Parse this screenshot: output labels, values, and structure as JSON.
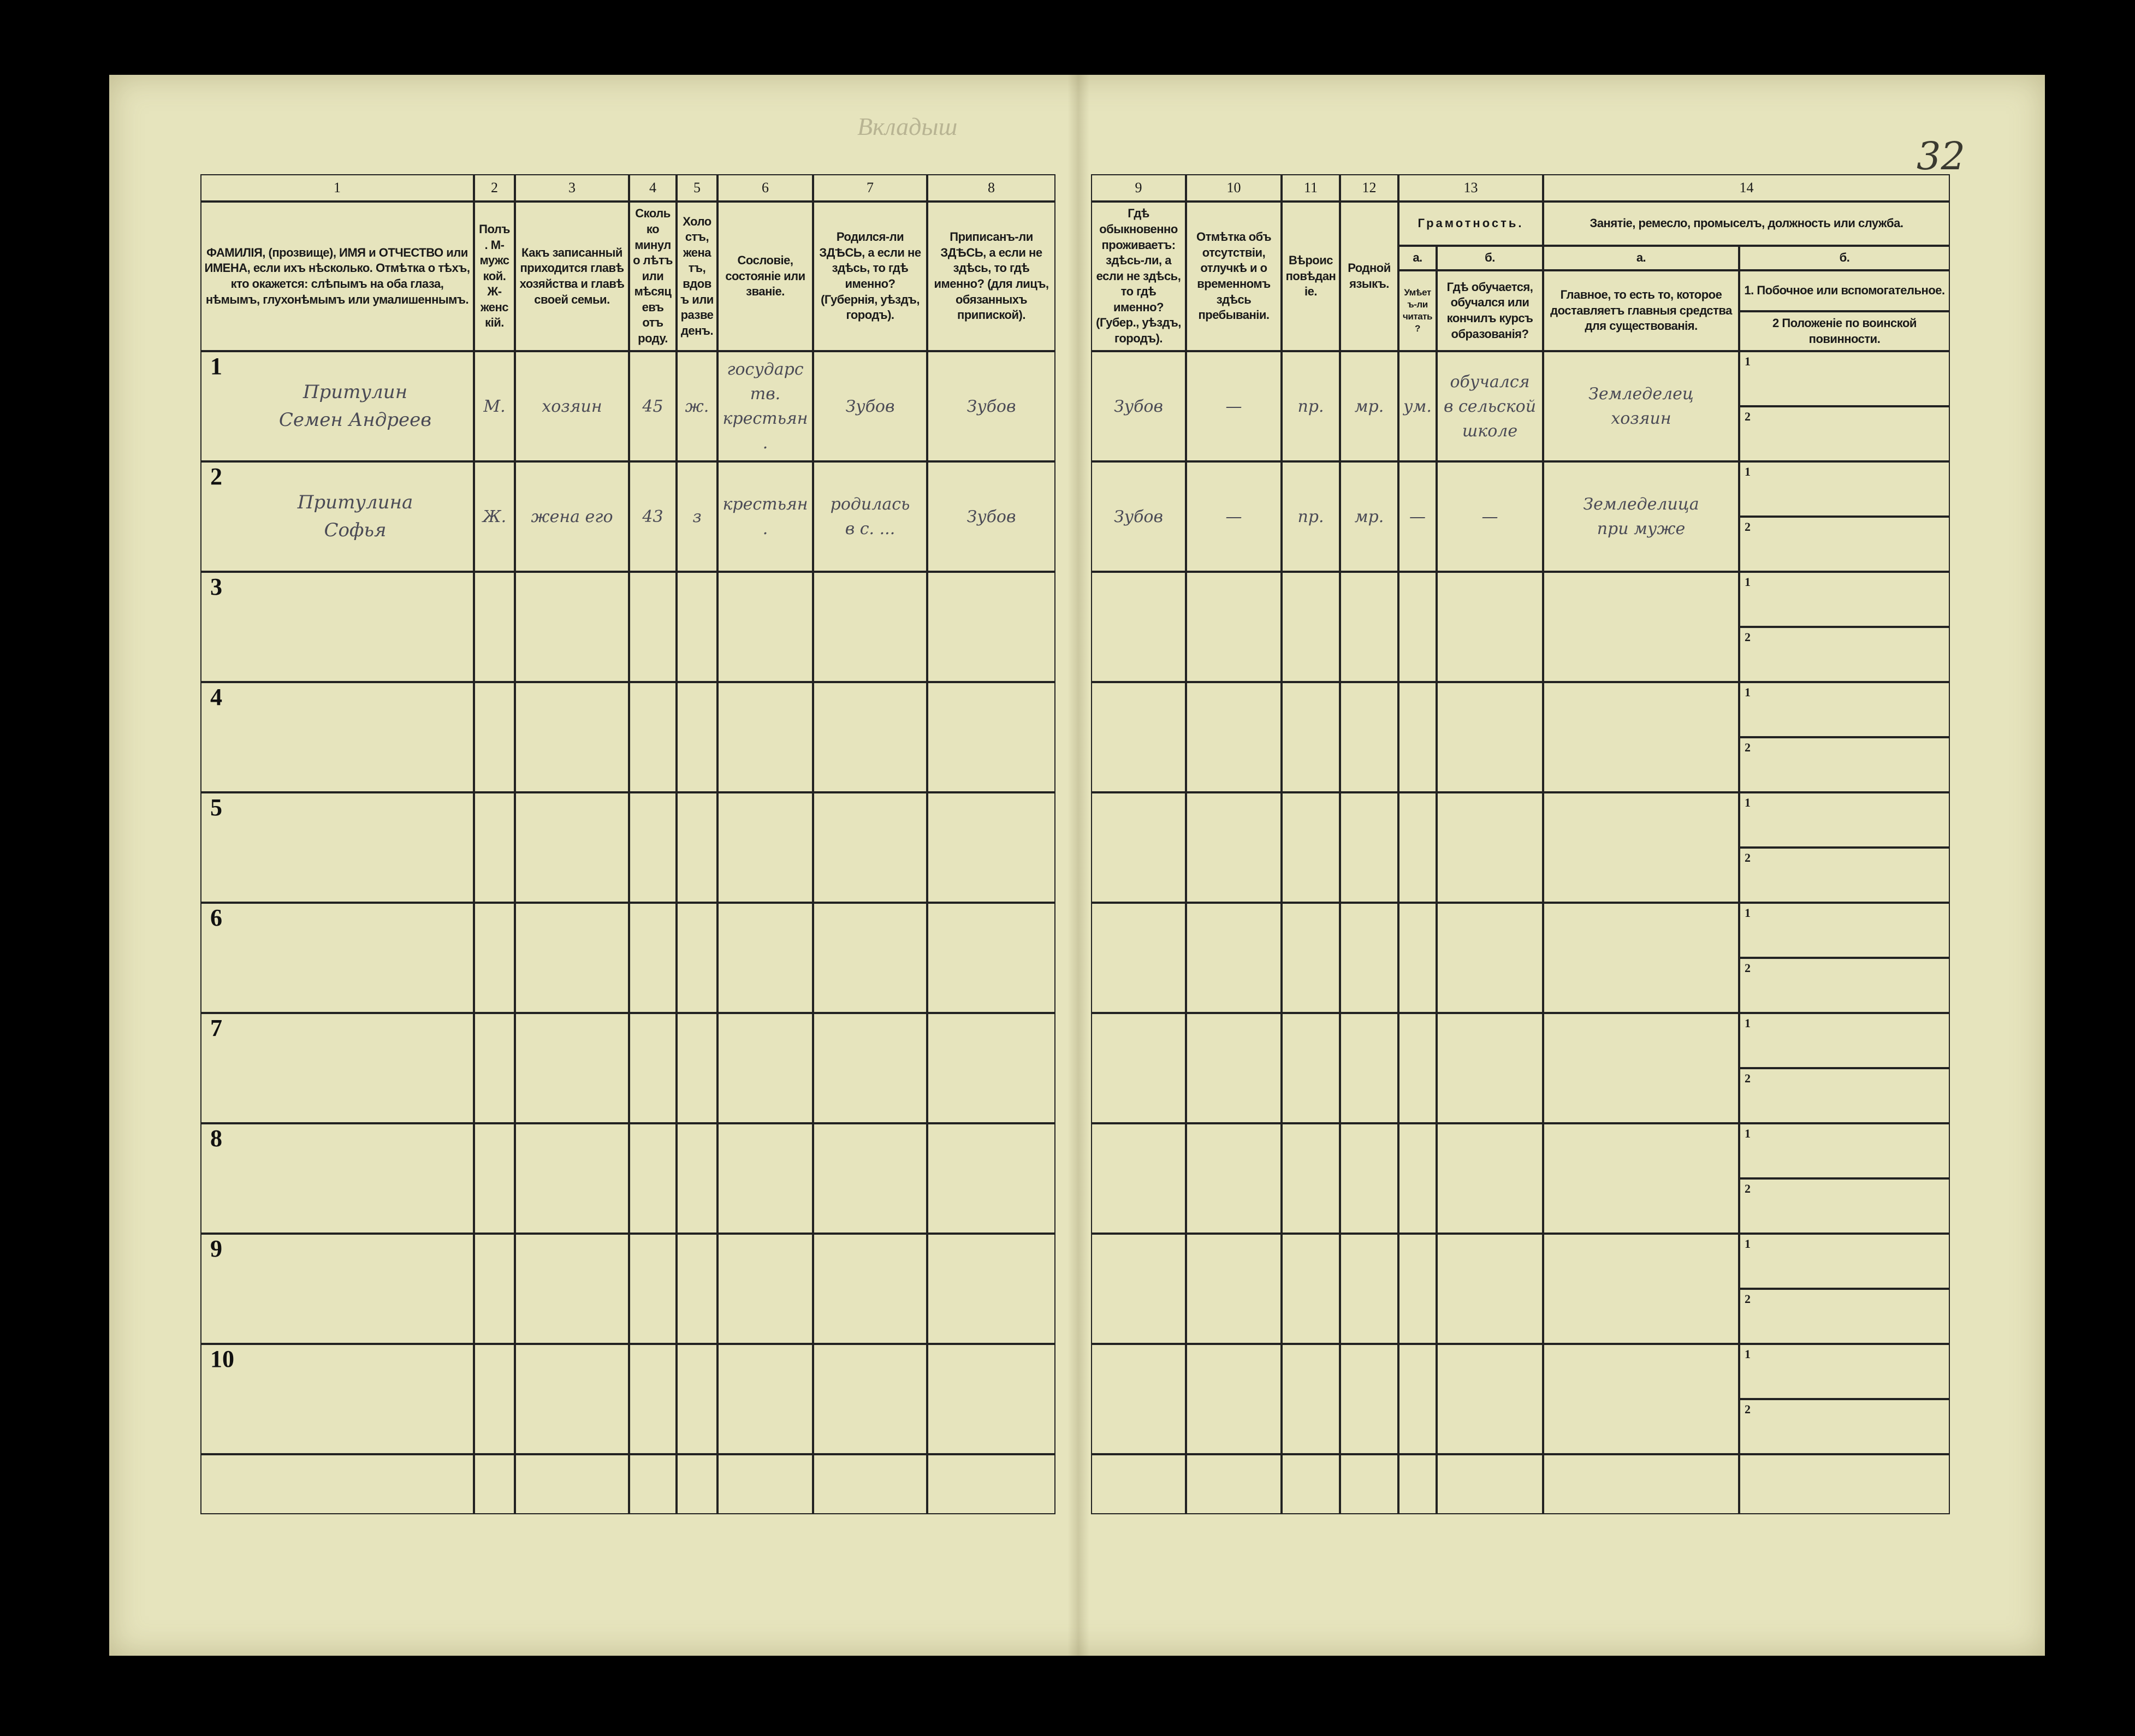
{
  "document": {
    "page_number": "32",
    "faint_heading": "Вкладыш"
  },
  "header": {
    "columns": [
      {
        "num": "1",
        "text": "ФАМИЛІЯ, (прозвище), ИМЯ и ОТЧЕСТВО или ИМЕНА, если ихъ нѣсколько. Отмѣтка о тѣхъ, кто окажется: слѣпымъ на оба глаза, нѣмымъ, глухонѣмымъ или умалишеннымъ."
      },
      {
        "num": "2",
        "text": "Полъ. М-мужской. Ж-женскій."
      },
      {
        "num": "3",
        "text": "Какъ записанный приходится главѣ хозяйства и главѣ своей семьи."
      },
      {
        "num": "4",
        "text": "Сколько минуло лѣтъ или мѣсяцевъ отъ роду."
      },
      {
        "num": "5",
        "text": "Холостъ, женатъ, вдовъ или разведенъ."
      },
      {
        "num": "6",
        "text": "Сословіе, состояніе или званіе."
      },
      {
        "num": "7",
        "text": "Родился-ли ЗДѢСЬ, а если не здѣсь, то гдѣ именно? (Губернія, уѣздъ, городъ)."
      },
      {
        "num": "8",
        "text": "Приписанъ-ли ЗДѢСЬ, а если не здѣсь, то гдѣ именно? (для лицъ, обязанныхъ припиской)."
      },
      {
        "num": "9",
        "text": "Гдѣ обыкновенно проживаетъ: здѣсь-ли, а если не здѣсь, то гдѣ именно? (Губер., уѣздъ, городъ)."
      },
      {
        "num": "10",
        "text": "Отмѣтка объ отсутствіи, отлучкѣ и о временномъ здѣсь пребываніи."
      },
      {
        "num": "11",
        "text": "Вѣроисповѣданіе."
      },
      {
        "num": "12",
        "text": "Родной языкъ."
      }
    ],
    "literacy": {
      "num": "13",
      "title": "Грамотность.",
      "a_label": "а.",
      "a_text": "Умѣетъ-ли читать?",
      "b_label": "б.",
      "b_text": "Гдѣ обучается, обучался или кончилъ курсъ образованія?"
    },
    "occupation": {
      "num": "14",
      "title": "Занятіе, ремесло, промыселъ, должность или служба.",
      "a_label": "а.",
      "a_text": "Главное, то есть то, которое доставляетъ главныя средства для существованія.",
      "b_label": "б.",
      "b_text_1": "1. Побочное или вспомогательное.",
      "b_text_2": "2 Положеніе по воинской повинности."
    }
  },
  "sub_row_labels": [
    "1",
    "2"
  ],
  "rows": [
    {
      "number": "1",
      "cells": [
        "Притулин\nСемен Андреев",
        "М.",
        "хозяин",
        "45",
        "ж.",
        "государств.\nкрестьян.",
        "Зубов",
        "Зубов",
        "Зубов",
        "—",
        "пр.",
        "мр.",
        "ум.",
        "обучался\nв сельской\nшколе",
        "Земледелец\nхозяин",
        ""
      ]
    },
    {
      "number": "2",
      "cells": [
        "Притулина\nСофья",
        "Ж.",
        "жена его",
        "43",
        "з",
        "крестьян.",
        "родилась\nв с. ...",
        "Зубов",
        "Зубов",
        "—",
        "пр.",
        "мр.",
        "—",
        "—",
        "Земледелица\nпри муже",
        ""
      ]
    },
    {
      "number": "3",
      "cells": []
    },
    {
      "number": "4",
      "cells": []
    },
    {
      "number": "5",
      "cells": []
    },
    {
      "number": "6",
      "cells": []
    },
    {
      "number": "7",
      "cells": []
    },
    {
      "number": "8",
      "cells": []
    },
    {
      "number": "9",
      "cells": []
    },
    {
      "number": "10",
      "cells": []
    }
  ],
  "colors": {
    "paper": "#e6e4bd",
    "ink": "#1a1a1a",
    "handwriting": "#4a4a55"
  }
}
